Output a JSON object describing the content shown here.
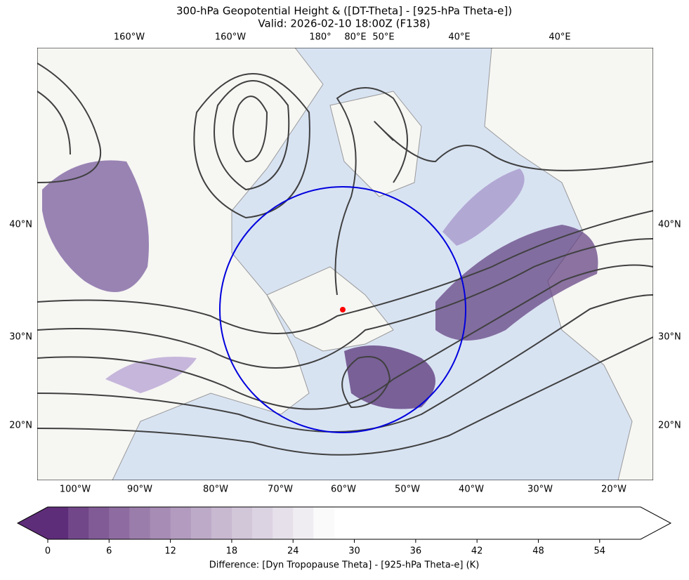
{
  "title": "300-hPa Geopotential Height & ([DT-Theta] - [925-hPa Theta-e])",
  "subtitle": "Valid: 2026-02-10 18:00Z (F138)",
  "top_labels": [
    "160°W",
    "160°W",
    "180°",
    "80°E",
    "50°E",
    "40°E",
    "40°E"
  ],
  "bottom_labels": [
    "100°W",
    "90°W",
    "80°W",
    "70°W",
    "60°W",
    "50°W",
    "40°W",
    "30°W",
    "20°W"
  ],
  "left_labels": [
    "40°N",
    "30°N",
    "20°N"
  ],
  "right_labels": [
    "40°N",
    "30°N",
    "20°N"
  ],
  "colorbar": {
    "lim": [
      0,
      58
    ],
    "ticks": [
      0,
      6,
      12,
      18,
      24,
      30,
      36,
      42,
      48,
      54
    ],
    "label": "Difference: [Dyn Tropopause Theta] - [925-hPa Theta-e] (K)"
  }
}
